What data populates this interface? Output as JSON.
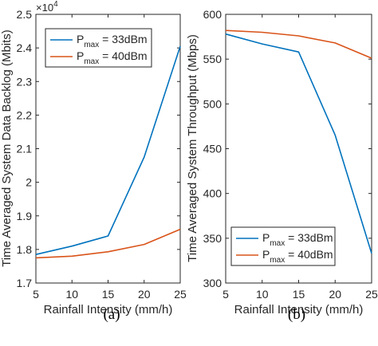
{
  "chart_data": [
    {
      "type": "line",
      "caption": "(a)",
      "xlabel": "Rainfall Intensity (mm/h)",
      "ylabel": "Time Averaged System Data Backlog (Mbits)",
      "multiplier": "×10",
      "multiplier_exp": "4",
      "xlim": [
        5,
        25
      ],
      "ylim": [
        1.7,
        2.5
      ],
      "xticks": [
        5,
        10,
        15,
        20,
        25
      ],
      "xtick_labels": [
        "5",
        "10",
        "15",
        "20",
        "25"
      ],
      "yticks": [
        1.7,
        1.8,
        1.9,
        2.0,
        2.1,
        2.2,
        2.3,
        2.4,
        2.5
      ],
      "ytick_labels": [
        "1.7",
        "1.8",
        "1.9",
        "2",
        "2.1",
        "2.2",
        "2.3",
        "2.4",
        "2.5"
      ],
      "legend_position": "top-left",
      "grid": false,
      "x": [
        5,
        10,
        15,
        20,
        25
      ],
      "series": [
        {
          "label_main": "P",
          "label_sub": "max",
          "label_rest": " = 33dBm",
          "color": "#0072BD",
          "values": [
            1.785,
            1.81,
            1.84,
            2.075,
            2.405
          ]
        },
        {
          "label_main": "P",
          "label_sub": "max",
          "label_rest": " = 40dBm",
          "color": "#D95319",
          "values": [
            1.775,
            1.78,
            1.793,
            1.815,
            1.86
          ]
        }
      ]
    },
    {
      "type": "line",
      "caption": "(b)",
      "xlabel": "Rainfall Intensity (mm/h)",
      "ylabel": "Time Averaged System Throughput (Mbps)",
      "xlim": [
        5,
        25
      ],
      "ylim": [
        300,
        600
      ],
      "xticks": [
        5,
        10,
        15,
        20,
        25
      ],
      "xtick_labels": [
        "5",
        "10",
        "15",
        "20",
        "25"
      ],
      "yticks": [
        300,
        350,
        400,
        450,
        500,
        550,
        600
      ],
      "ytick_labels": [
        "300",
        "350",
        "400",
        "450",
        "500",
        "550",
        "600"
      ],
      "legend_position": "bottom-left",
      "grid": false,
      "x": [
        5,
        10,
        15,
        20,
        25
      ],
      "series": [
        {
          "label_main": "P",
          "label_sub": "max",
          "label_rest": " = 33dBm",
          "color": "#0072BD",
          "values": [
            578,
            567,
            558,
            465,
            333
          ]
        },
        {
          "label_main": "P",
          "label_sub": "max",
          "label_rest": " = 40dBm",
          "color": "#D95319",
          "values": [
            582,
            580,
            576,
            568,
            551
          ]
        }
      ]
    }
  ]
}
